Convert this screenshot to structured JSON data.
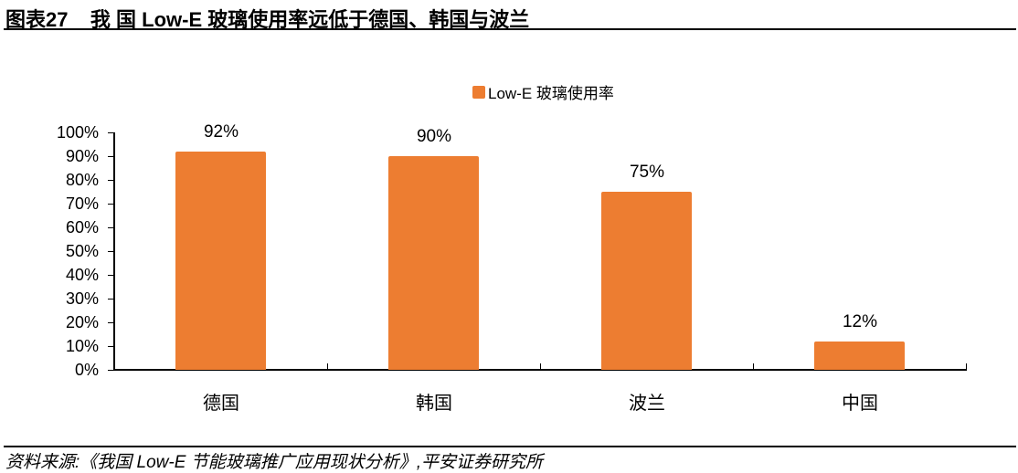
{
  "figure": {
    "title": "图表27    我 国 Low-E 玻璃使用率远低于德国、韩国与波兰",
    "source": "资料来源:《我国 Low-E 节能玻璃推广应用现状分析》,平安证券研究所"
  },
  "legend": {
    "label": "Low-E 玻璃使用率",
    "color": "#ED7D31"
  },
  "y_ticks": [
    "0%",
    "10%",
    "20%",
    "30%",
    "40%",
    "50%",
    "60%",
    "70%",
    "80%",
    "90%",
    "100%"
  ],
  "bars": [
    {
      "category": "德国",
      "value_label": "92%"
    },
    {
      "category": "韩国",
      "value_label": "90%"
    },
    {
      "category": "波兰",
      "value_label": "75%"
    },
    {
      "category": "中国",
      "value_label": "12%"
    }
  ],
  "chart_data": {
    "type": "bar",
    "title": "我国 Low-E 玻璃使用率远低于德国、韩国与波兰",
    "categories": [
      "德国",
      "韩国",
      "波兰",
      "中国"
    ],
    "series": [
      {
        "name": "Low-E 玻璃使用率",
        "values": [
          92,
          90,
          75,
          12
        ],
        "color": "#ED7D31"
      }
    ],
    "data_labels": [
      "92%",
      "90%",
      "75%",
      "12%"
    ],
    "xlabel": "",
    "ylabel": "",
    "ylim": [
      0,
      100
    ],
    "y_tick_step": 10,
    "y_format": "percent",
    "grid": false,
    "legend_position": "top"
  }
}
